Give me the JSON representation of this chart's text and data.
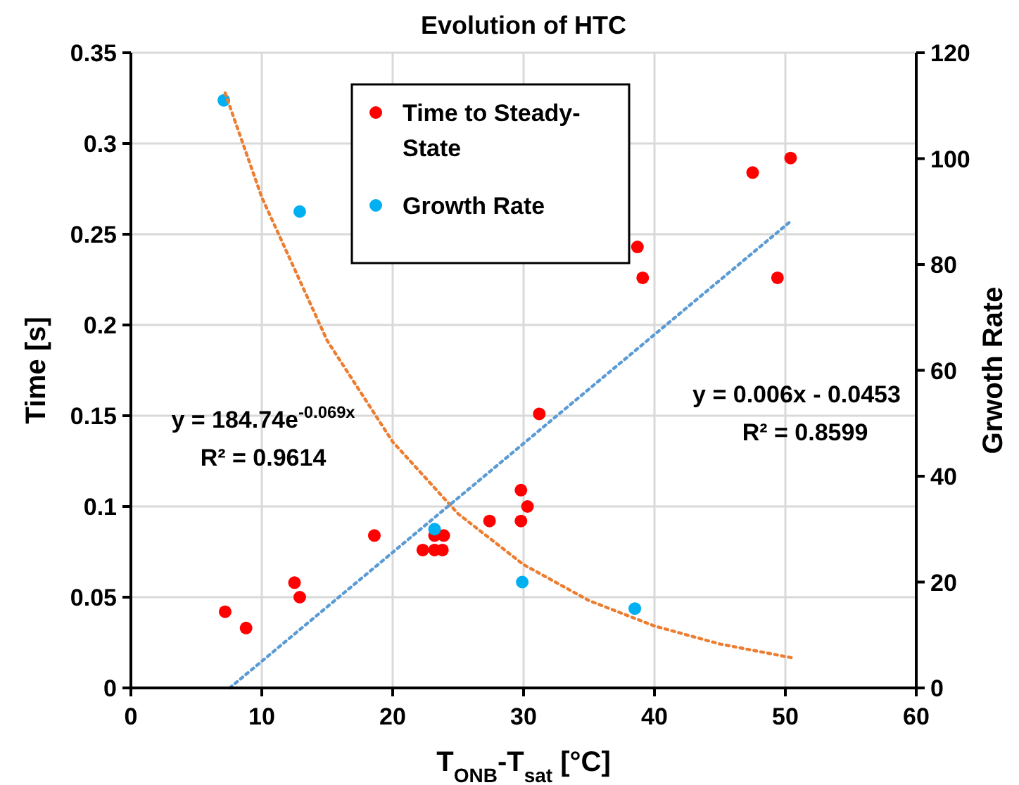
{
  "chart_data": {
    "type": "scatter",
    "title": "Evolution of HTC",
    "xlabel": "T$_{ONB}$-T$_{sat}$ [°C]",
    "ylabel": "Time [s]",
    "y2label": "Grwoth Rate",
    "xlim": [
      0,
      60
    ],
    "xticks": [
      0,
      10,
      20,
      30,
      40,
      50,
      60
    ],
    "ylim": [
      0,
      0.35
    ],
    "yticks": [
      0,
      0.05,
      0.1,
      0.15,
      0.2,
      0.25,
      0.3,
      0.35
    ],
    "y2lim": [
      0,
      120
    ],
    "y2ticks": [
      0,
      20,
      40,
      60,
      80,
      100,
      120
    ],
    "grid": true,
    "legend": "top",
    "marker": "circle",
    "series": [
      {
        "name": "Time to Steady-State",
        "color": "#ff0000",
        "x": [
          7.2,
          8.8,
          12.5,
          12.9,
          18.6,
          22.3,
          23.2,
          23.8,
          23.2,
          23.9,
          27.4,
          29.8,
          29.8,
          30.3,
          31.2,
          38.7,
          39.1,
          49.4,
          47.5,
          50.4
        ],
        "values": [
          0.042,
          0.033,
          0.058,
          0.05,
          0.084,
          0.076,
          0.076,
          0.076,
          0.084,
          0.084,
          0.092,
          0.092,
          0.109,
          0.1,
          0.151,
          0.243,
          0.226,
          0.226,
          0.284,
          0.292
        ]
      },
      {
        "name": "Growth Rate",
        "color": "#00b0f0",
        "axis": "y2",
        "x": [
          7.1,
          12.9,
          23.2,
          29.9,
          38.5
        ],
        "values": [
          111,
          90,
          30,
          20,
          15
        ]
      },
      {
        "type": "line",
        "color": "#ed7d31",
        "axis": "y2",
        "line_style": "dotted",
        "marker": "none",
        "x": [
          7.2,
          10,
          15,
          20,
          25,
          30,
          35,
          40,
          45,
          50.5
        ],
        "values": [
          112.4,
          92.7,
          65.6,
          46.5,
          32.9,
          23.3,
          16.5,
          11.7,
          8.3,
          5.7
        ]
      },
      {
        "type": "line",
        "color": "#5b9bd5",
        "line_style": "dotted",
        "marker": "none",
        "x": [
          7.55,
          50.5
        ],
        "values": [
          0,
          0.2577
        ]
      }
    ],
    "annotations": [
      "y = 184.74e$^{-0.069x}$",
      "R² = 0.9614",
      "y = 0.006x - 0.0453",
      "R² = 0.8599"
    ]
  }
}
